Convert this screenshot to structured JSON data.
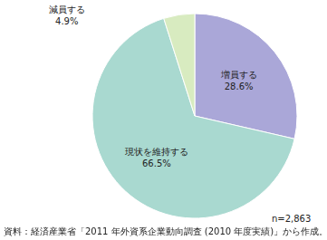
{
  "chart_data": {
    "type": "pie",
    "categories": [
      "増員する",
      "現状を維持する",
      "減員する"
    ],
    "values": [
      28.6,
      66.5,
      4.9
    ],
    "value_labels": [
      "28.6%",
      "66.5%",
      "4.9%"
    ],
    "colors": [
      "#aaa7d8",
      "#a9d9d0",
      "#d8ebc0"
    ],
    "data_labels": true,
    "annotations": [
      "n=2,863"
    ],
    "source": "資料：経済産業省「2011 年外資系企業動向調査 (2010 年度実績)」から作成。"
  }
}
